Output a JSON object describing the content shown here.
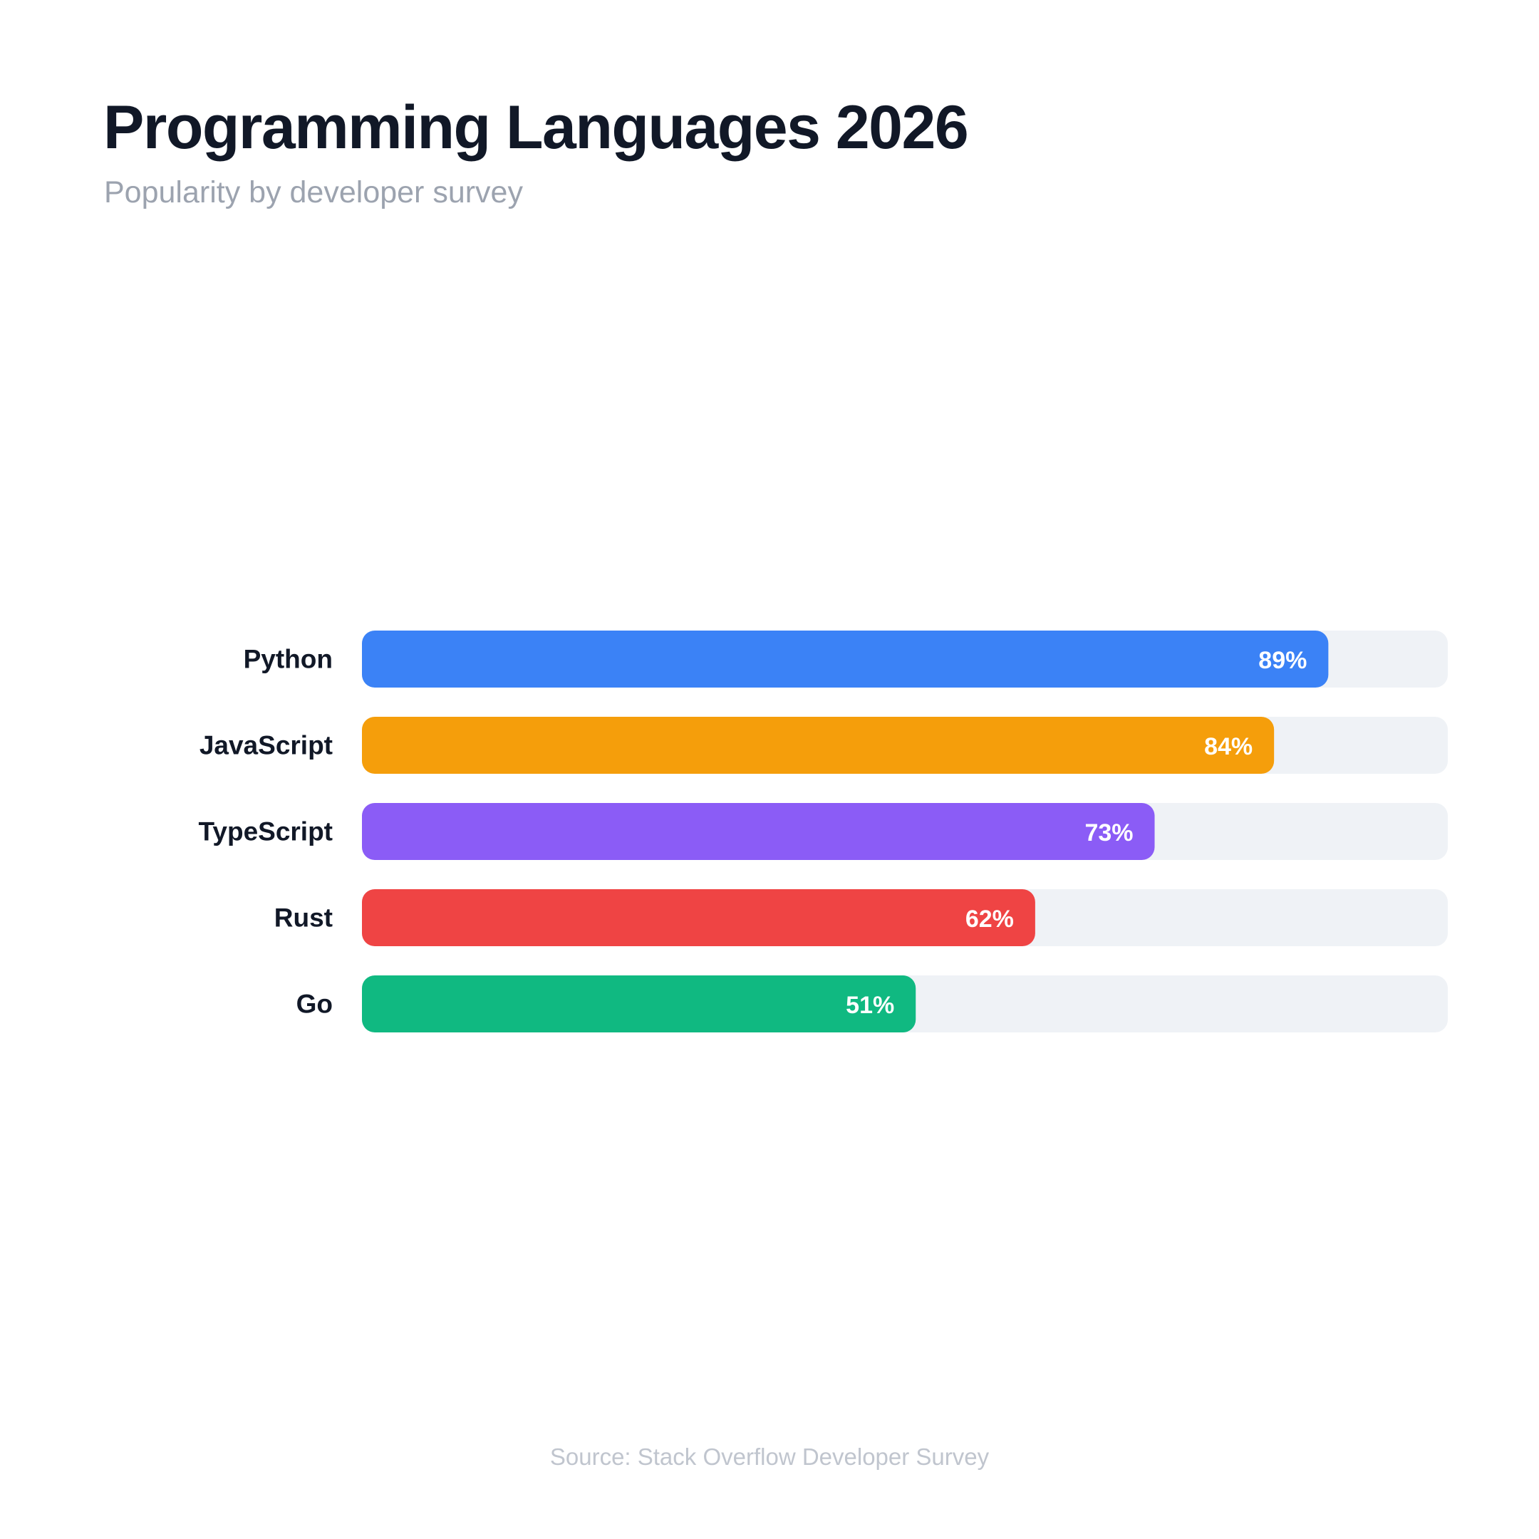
{
  "header": {
    "title": "Programming Languages 2026",
    "subtitle": "Popularity by developer survey"
  },
  "footer": {
    "source": "Source: Stack Overflow Developer Survey"
  },
  "colors": {
    "track": "#eff2f6",
    "label": "#111827",
    "value_label": "#ffffff"
  },
  "chart_data": {
    "type": "bar",
    "orientation": "horizontal",
    "title": "Programming Languages 2026",
    "subtitle": "Popularity by developer survey",
    "xlabel": "",
    "ylabel": "",
    "xlim": [
      0,
      100
    ],
    "grid": false,
    "categories": [
      "Python",
      "JavaScript",
      "TypeScript",
      "Rust",
      "Go"
    ],
    "values": [
      89,
      84,
      73,
      62,
      51
    ],
    "value_labels": [
      "89%",
      "84%",
      "73%",
      "62%",
      "51%"
    ],
    "colors": [
      "#3b82f6",
      "#f59e0b",
      "#8b5cf6",
      "#ef4444",
      "#10b981"
    ]
  }
}
